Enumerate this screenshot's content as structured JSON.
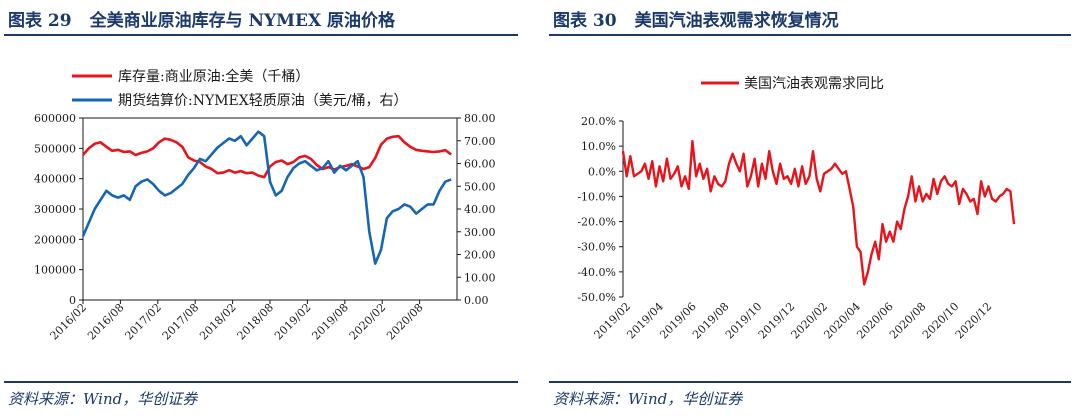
{
  "left": {
    "figure_label": "图表 29",
    "title": "全美商业原油库存与 NYMEX 原油价格",
    "source": "资料来源：Wind，华创证券"
  },
  "right": {
    "figure_label": "图表 30",
    "title": "美国汽油表观需求恢复情况",
    "source": "资料来源：Wind，华创证券"
  },
  "colors": {
    "red": "#e8141c",
    "blue": "#1566b5",
    "navy": "#1b3a6b"
  },
  "chart_data": [
    {
      "type": "line",
      "title": "全美商业原油库存与 NYMEX 原油价格",
      "legend_position": "top",
      "x_ticks": [
        "2016/02",
        "2016/08",
        "2017/02",
        "2017/08",
        "2018/02",
        "2018/08",
        "2019/02",
        "2019/08",
        "2020/02",
        "2020/08"
      ],
      "x_range": [
        0,
        64
      ],
      "y_left": {
        "range": [
          0,
          600000
        ],
        "ticks": [
          "0",
          "100000",
          "200000",
          "300000",
          "400000",
          "500000",
          "600000"
        ]
      },
      "y_right": {
        "range": [
          0,
          80
        ],
        "ticks": [
          "0.00",
          "10.00",
          "20.00",
          "30.00",
          "40.00",
          "50.00",
          "60.00",
          "70.00",
          "80.00"
        ]
      },
      "series": [
        {
          "name": "库存量:商业原油:全美（千桶）",
          "axis": "left",
          "color": "#e8141c",
          "x": [
            0,
            1,
            2,
            3,
            4,
            5,
            6,
            7,
            8,
            9,
            10,
            11,
            12,
            13,
            14,
            15,
            16,
            17,
            18,
            19,
            20,
            21,
            22,
            23,
            24,
            25,
            26,
            27,
            28,
            29,
            30,
            31,
            32,
            33,
            34,
            35,
            36,
            37,
            38,
            39,
            40,
            41,
            42,
            43,
            44,
            45,
            46,
            47,
            48,
            49,
            50,
            51,
            52,
            53,
            54,
            55,
            56,
            57,
            58,
            59,
            60,
            61,
            62,
            63
          ],
          "values": [
            478000,
            500000,
            515000,
            520000,
            505000,
            492000,
            495000,
            488000,
            490000,
            478000,
            485000,
            490000,
            500000,
            520000,
            532000,
            528000,
            520000,
            505000,
            470000,
            460000,
            455000,
            440000,
            432000,
            418000,
            420000,
            428000,
            420000,
            425000,
            418000,
            420000,
            410000,
            405000,
            440000,
            455000,
            460000,
            448000,
            455000,
            470000,
            475000,
            465000,
            445000,
            432000,
            438000,
            430000,
            438000,
            442000,
            448000,
            440000,
            432000,
            438000,
            468000,
            512000,
            532000,
            538000,
            540000,
            520000,
            505000,
            495000,
            492000,
            490000,
            488000,
            490000,
            494000,
            480000
          ]
        },
        {
          "name": "期货结算价:NYMEX轻质原油（美元/桶，右）",
          "axis": "right",
          "color": "#1566b5",
          "x": [
            0,
            1,
            2,
            3,
            4,
            5,
            6,
            7,
            8,
            9,
            10,
            11,
            12,
            13,
            14,
            15,
            16,
            17,
            18,
            19,
            20,
            21,
            22,
            23,
            24,
            25,
            26,
            27,
            28,
            29,
            30,
            31,
            32,
            33,
            34,
            35,
            36,
            37,
            38,
            39,
            40,
            41,
            42,
            43,
            44,
            45,
            46,
            47,
            48,
            49,
            50,
            51,
            52,
            53,
            54,
            55,
            56,
            57,
            58,
            59,
            60,
            61,
            62,
            63
          ],
          "values": [
            28,
            34,
            40,
            44,
            48,
            46,
            45,
            46,
            44,
            50,
            52,
            53,
            51,
            48,
            46,
            47,
            49,
            51,
            55,
            58,
            62,
            61,
            64,
            67,
            69,
            71,
            70,
            72,
            68,
            71,
            74,
            72,
            52,
            46,
            48,
            54,
            58,
            60,
            61,
            59,
            57,
            58,
            61,
            56,
            59,
            57,
            59,
            61,
            54,
            30,
            16,
            22,
            36,
            39,
            40,
            42,
            41,
            38,
            40,
            42,
            42,
            48,
            52,
            53
          ]
        }
      ]
    },
    {
      "type": "line",
      "title": "美国汽油表观需求恢复情况",
      "legend_position": "top",
      "x_ticks": [
        "2019/02",
        "2019/04",
        "2019/06",
        "2019/08",
        "2019/10",
        "2019/12",
        "2020/02",
        "2020/04",
        "2020/06",
        "2020/08",
        "2020/10",
        "2020/12"
      ],
      "x_range": [
        0,
        110
      ],
      "y_range": [
        -50,
        20
      ],
      "y_ticks": [
        "20.0%",
        "10.0%",
        "0.0%",
        "-10.0%",
        "-20.0%",
        "-30.0%",
        "-40.0%",
        "-50.0%"
      ],
      "series": [
        {
          "name": "美国汽油表观需求同比",
          "color": "#e8141c",
          "x": [
            0,
            1,
            2,
            3,
            4,
            5,
            6,
            7,
            8,
            9,
            10,
            11,
            12,
            13,
            14,
            15,
            16,
            17,
            18,
            19,
            20,
            21,
            22,
            23,
            24,
            25,
            26,
            27,
            28,
            29,
            30,
            31,
            32,
            33,
            34,
            35,
            36,
            37,
            38,
            39,
            40,
            41,
            42,
            43,
            44,
            45,
            46,
            47,
            48,
            49,
            50,
            51,
            52,
            53,
            54,
            55,
            56,
            57,
            58,
            59,
            60,
            61,
            62,
            63,
            64,
            65,
            66,
            67,
            68,
            69,
            70,
            71,
            72,
            73,
            74,
            75,
            76,
            77,
            78,
            79,
            80,
            81,
            82,
            83,
            84,
            85,
            86,
            87,
            88,
            89,
            90,
            91,
            92,
            93,
            94,
            95,
            96,
            97,
            98,
            99,
            100,
            101,
            102,
            103,
            104,
            105,
            106,
            107
          ],
          "values": [
            8,
            -2,
            6,
            -2,
            -1,
            0,
            3,
            -3,
            4,
            -6,
            2,
            -4,
            5,
            -3,
            -1,
            2,
            -6,
            -2,
            -7,
            12,
            -2,
            3,
            -3,
            1,
            -8,
            -2,
            -5,
            -6,
            -4,
            3,
            7,
            3,
            0,
            7,
            -6,
            -2,
            5,
            -6,
            3,
            -3,
            8,
            0,
            -5,
            3,
            -3,
            -2,
            -5,
            1,
            -6,
            2,
            -5,
            -2,
            8,
            -3,
            -8,
            -1,
            0,
            1,
            3,
            1,
            -1,
            0,
            -7,
            -14,
            -30,
            -32,
            -45,
            -40,
            -33,
            -28,
            -35,
            -21,
            -28,
            -24,
            -28,
            -20,
            -23,
            -15,
            -10,
            -2,
            -12,
            -6,
            -12,
            -9,
            -11,
            -3,
            -9,
            -4,
            -2,
            -5,
            -6,
            -4,
            -13,
            -7,
            -9,
            -12,
            -11,
            -17,
            -4,
            -10,
            -6,
            -11,
            -12,
            -10,
            -9,
            -7,
            -8,
            -21
          ]
        }
      ]
    }
  ]
}
